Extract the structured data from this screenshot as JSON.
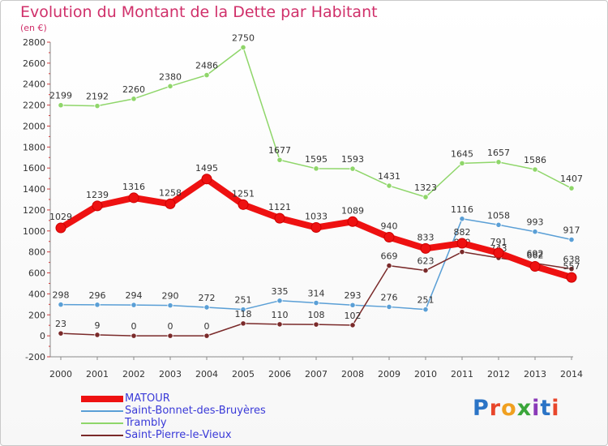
{
  "header": {
    "title": "Evolution du Montant de la Dette par Habitant",
    "unit": "(en €)"
  },
  "logo": {
    "text": "Proxiti",
    "colors": [
      "#2b74c6",
      "#e8462b",
      "#f0a020",
      "#3aa63a",
      "#8a3ab8",
      "#2b74c6",
      "#e8462b"
    ]
  },
  "chart_data": {
    "type": "line",
    "title": "Evolution du Montant de la Dette par Habitant",
    "ylabel": "(en €)",
    "ylim": [
      -200,
      2800
    ],
    "ytick_step": 200,
    "grid": false,
    "legend_position": "bottom-left",
    "x": [
      "2000",
      "2001",
      "2002",
      "2003",
      "2004",
      "2005",
      "2006",
      "2007",
      "2008",
      "2009",
      "2010",
      "2011",
      "2012",
      "2013",
      "2014"
    ],
    "series": [
      {
        "name": "MATOUR",
        "color": "#ee1111",
        "values": [
          1029,
          1239,
          1316,
          1258,
          1495,
          1251,
          1121,
          1033,
          1089,
          940,
          833,
          882,
          791,
          662,
          557
        ]
      },
      {
        "name": "Saint-Bonnet-des-Bruyères",
        "color": "#5a9fd6",
        "values": [
          298,
          296,
          294,
          290,
          272,
          251,
          335,
          314,
          293,
          276,
          251,
          1116,
          1058,
          993,
          917
        ]
      },
      {
        "name": "Trambly",
        "color": "#8fd66a",
        "values": [
          2199,
          2192,
          2260,
          2380,
          2486,
          2750,
          1677,
          1595,
          1593,
          1431,
          1323,
          1645,
          1657,
          1586,
          1407
        ]
      },
      {
        "name": "Saint-Pierre-le-Vieux",
        "color": "#7a2a2a",
        "values": [
          23,
          9,
          0,
          0,
          0,
          118,
          110,
          108,
          102,
          669,
          623,
          800,
          743,
          692,
          638
        ]
      }
    ]
  }
}
